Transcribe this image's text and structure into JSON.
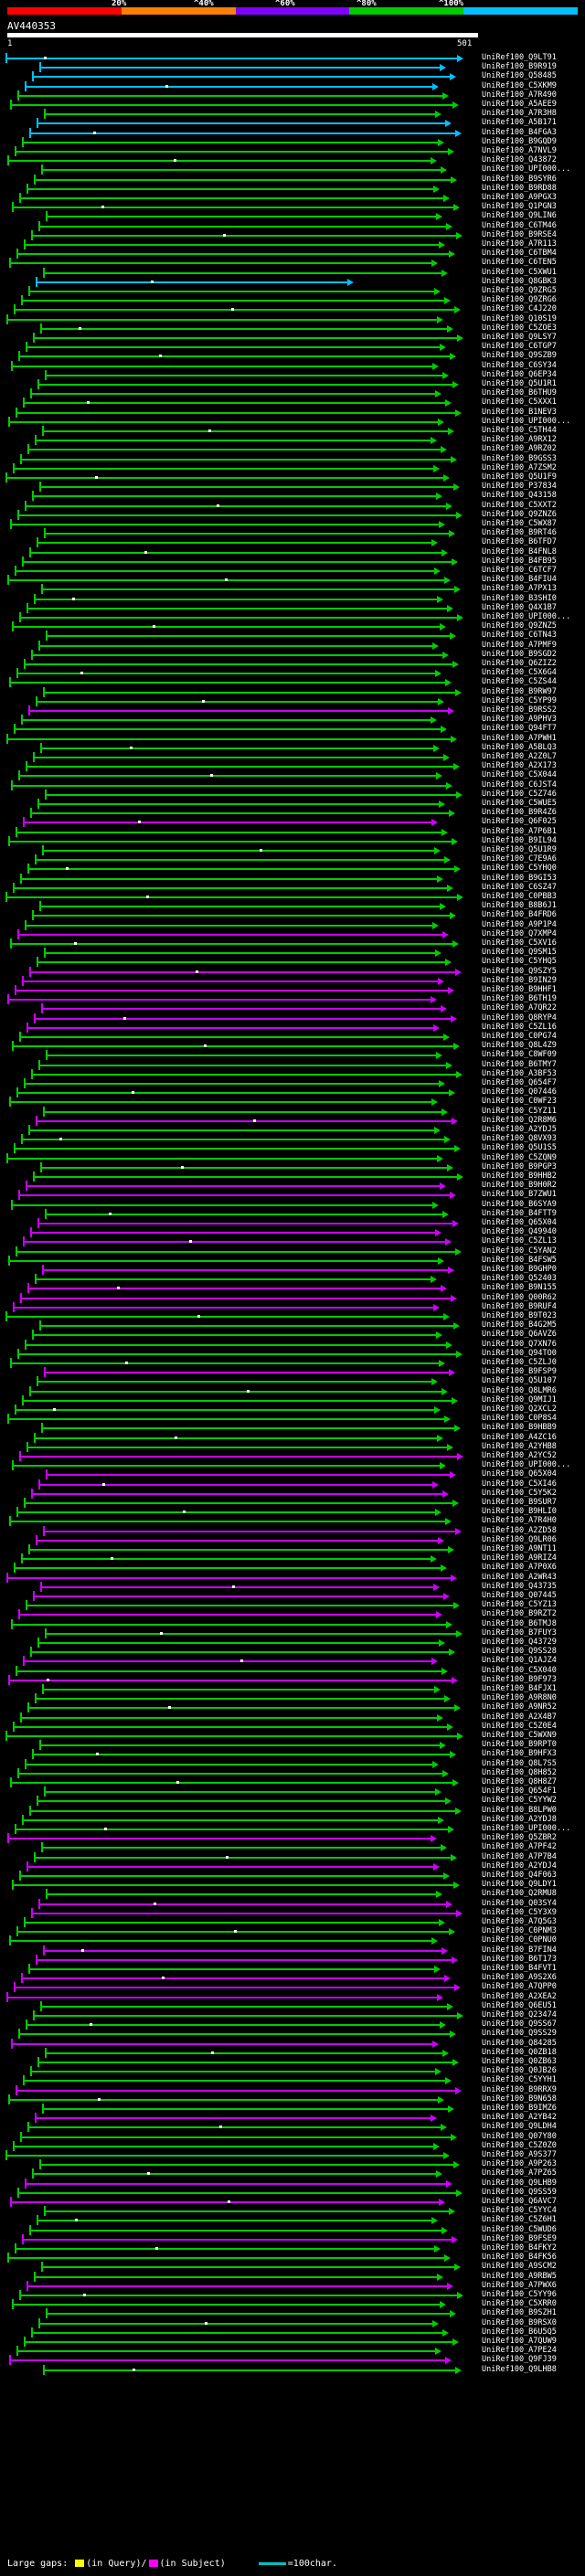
{
  "legend": {
    "colors": [
      "#ff0000",
      "#ff8000",
      "#8000ff",
      "#00cc00",
      "#00c0ff"
    ],
    "labels": [
      "20%",
      "^40%",
      "^60%",
      "^80%",
      "^100%"
    ]
  },
  "query": {
    "id": "AV440353",
    "start": "1",
    "end": "501"
  },
  "hits": [
    {
      "name": "UniRef100_Q9LT91",
      "color": "#00c0ff"
    },
    {
      "name": "UniRef100_B9R919",
      "color": "#00c0ff"
    },
    {
      "name": "UniRef100_Q58485",
      "color": "#00c0ff"
    },
    {
      "name": "UniRef100_C5XKM9",
      "color": "#00c0ff"
    },
    {
      "name": "UniRef100_A7R490",
      "color": "#00cc00"
    },
    {
      "name": "UniRef100_A5AEE9",
      "color": "#00cc00"
    },
    {
      "name": "UniRef100_A7R3H8",
      "color": "#00cc00"
    },
    {
      "name": "UniRef100_A5B171",
      "color": "#00c0ff"
    },
    {
      "name": "UniRef100_B4FGA3",
      "color": "#00c0ff"
    },
    {
      "name": "UniRef100_B9GQD9",
      "color": "#00cc00"
    },
    {
      "name": "UniRef100_A7NVL9",
      "color": "#00cc00"
    },
    {
      "name": "UniRef100_Q43872",
      "color": "#00cc00"
    },
    {
      "name": "UniRef100_UPI000...",
      "color": "#00cc00"
    },
    {
      "name": "UniRef100_B9SYR6",
      "color": "#00cc00"
    },
    {
      "name": "UniRef100_B9RD88",
      "color": "#00cc00"
    },
    {
      "name": "UniRef100_A9PGX3",
      "color": "#00cc00"
    },
    {
      "name": "UniRef100_Q1PGN3",
      "color": "#00cc00"
    },
    {
      "name": "UniRef100_Q9LIN6",
      "color": "#00cc00"
    },
    {
      "name": "UniRef100_C6TM46",
      "color": "#00cc00"
    },
    {
      "name": "UniRef100_B9RSE4",
      "color": "#00cc00"
    },
    {
      "name": "UniRef100_A7R113",
      "color": "#00cc00"
    },
    {
      "name": "UniRef100_C6TBM4",
      "color": "#00cc00"
    },
    {
      "name": "UniRef100_C6TEN5",
      "color": "#00cc00"
    },
    {
      "name": "UniRef100_C5XWU1",
      "color": "#00cc00"
    },
    {
      "name": "UniRef100_Q8GBK3",
      "color": "#00c0ff"
    },
    {
      "name": "UniRef100_Q9ZRG5",
      "color": "#00cc00"
    },
    {
      "name": "UniRef100_Q9ZRG6",
      "color": "#00cc00"
    },
    {
      "name": "UniRef100_C4J220",
      "color": "#00cc00"
    },
    {
      "name": "UniRef100_Q10S19",
      "color": "#00cc00"
    },
    {
      "name": "UniRef100_C5ZOE3",
      "color": "#00cc00"
    },
    {
      "name": "UniRef100_Q9LSY7",
      "color": "#00cc00"
    },
    {
      "name": "UniRef100_C6TGP7",
      "color": "#00cc00"
    },
    {
      "name": "UniRef100_Q9SZB9",
      "color": "#00cc00"
    },
    {
      "name": "UniRef100_C6SY34",
      "color": "#00cc00"
    },
    {
      "name": "UniRef100_Q6EP34",
      "color": "#00cc00"
    },
    {
      "name": "UniRef100_Q5U1R1",
      "color": "#00cc00"
    },
    {
      "name": "UniRef100_B6THU9",
      "color": "#00cc00"
    },
    {
      "name": "UniRef100_C5XXX1",
      "color": "#00cc00"
    },
    {
      "name": "UniRef100_B1NEV3",
      "color": "#00cc00"
    },
    {
      "name": "UniRef100_UPI000...",
      "color": "#00cc00"
    },
    {
      "name": "UniRef100_C5TH44",
      "color": "#00cc00"
    },
    {
      "name": "UniRef100_A9RX12",
      "color": "#00cc00"
    },
    {
      "name": "UniRef100_A9RZ02",
      "color": "#00cc00"
    },
    {
      "name": "UniRef100_B9GSS3",
      "color": "#00cc00"
    },
    {
      "name": "UniRef100_A7ZSM2",
      "color": "#00cc00"
    },
    {
      "name": "UniRef100_Q5U1F9",
      "color": "#00cc00"
    },
    {
      "name": "UniRef100_P37834",
      "color": "#00cc00"
    },
    {
      "name": "UniRef100_Q43158",
      "color": "#00cc00"
    },
    {
      "name": "UniRef100_C5XXT2",
      "color": "#00cc00"
    },
    {
      "name": "UniRef100_Q9ZNZ6",
      "color": "#00cc00"
    },
    {
      "name": "UniRef100_C5WX87",
      "color": "#00cc00"
    },
    {
      "name": "UniRef100_B9RT46",
      "color": "#00cc00"
    },
    {
      "name": "UniRef100_B6TFD7",
      "color": "#00cc00"
    },
    {
      "name": "UniRef100_B4FNL8",
      "color": "#00cc00"
    },
    {
      "name": "UniRef100_B4FB95",
      "color": "#00cc00"
    },
    {
      "name": "UniRef100_C6TCF7",
      "color": "#00cc00"
    },
    {
      "name": "UniRef100_B4FIU4",
      "color": "#00cc00"
    },
    {
      "name": "UniRef100_A7PX13",
      "color": "#00cc00"
    },
    {
      "name": "UniRef100_B3SHI0",
      "color": "#00cc00"
    },
    {
      "name": "UniRef100_Q4X1B7",
      "color": "#00cc00"
    },
    {
      "name": "UniRef100_UPI000...",
      "color": "#00cc00"
    },
    {
      "name": "UniRef100_Q9ZNZ5",
      "color": "#00cc00"
    },
    {
      "name": "UniRef100_C6TN43",
      "color": "#00cc00"
    },
    {
      "name": "UniRef100_A7PMF9",
      "color": "#00cc00"
    },
    {
      "name": "UniRef100_B9SGD2",
      "color": "#00cc00"
    },
    {
      "name": "UniRef100_Q6ZIZ2",
      "color": "#00cc00"
    },
    {
      "name": "UniRef100_C5X6G4",
      "color": "#00cc00"
    },
    {
      "name": "UniRef100_C5ZS44",
      "color": "#00cc00"
    },
    {
      "name": "UniRef100_B9RW97",
      "color": "#00cc00"
    },
    {
      "name": "UniRef100_C5YP99",
      "color": "#00cc00"
    },
    {
      "name": "UniRef100_B9RSS2",
      "color": "#cc00ff"
    },
    {
      "name": "UniRef100_A9PHV3",
      "color": "#00cc00"
    },
    {
      "name": "UniRef100_Q94FT7",
      "color": "#00cc00"
    },
    {
      "name": "UniRef100_A7PWH1",
      "color": "#00cc00"
    },
    {
      "name": "UniRef100_A5BLQ3",
      "color": "#00cc00"
    },
    {
      "name": "UniRef100_A2Z0L7",
      "color": "#00cc00"
    },
    {
      "name": "UniRef100_A2X173",
      "color": "#00cc00"
    },
    {
      "name": "UniRef100_C5X044",
      "color": "#00cc00"
    },
    {
      "name": "UniRef100_C6JST4",
      "color": "#00cc00"
    },
    {
      "name": "UniRef100_C5Z746",
      "color": "#00cc00"
    },
    {
      "name": "UniRef100_C5WUE5",
      "color": "#00cc00"
    },
    {
      "name": "UniRef100_B9R4Z6",
      "color": "#00cc00"
    },
    {
      "name": "UniRef100_Q6F025",
      "color": "#cc00ff"
    },
    {
      "name": "UniRef100_A7P6B1",
      "color": "#00cc00"
    },
    {
      "name": "UniRef100_B9IL94",
      "color": "#00cc00"
    },
    {
      "name": "UniRef100_Q5U1R9",
      "color": "#00cc00"
    },
    {
      "name": "UniRef100_C7E9A6",
      "color": "#00cc00"
    },
    {
      "name": "UniRef100_C5YHQ0",
      "color": "#00cc00"
    },
    {
      "name": "UniRef100_B9GI53",
      "color": "#00cc00"
    },
    {
      "name": "UniRef100_C6SZ47",
      "color": "#00cc00"
    },
    {
      "name": "UniRef100_C0PBB3",
      "color": "#00cc00"
    },
    {
      "name": "UniRef100_B8B6J1",
      "color": "#00cc00"
    },
    {
      "name": "UniRef100_B4FRD6",
      "color": "#00cc00"
    },
    {
      "name": "UniRef100_A9P1P4",
      "color": "#00cc00"
    },
    {
      "name": "UniRef100_Q7XMP4",
      "color": "#cc00ff"
    },
    {
      "name": "UniRef100_C5XV16",
      "color": "#00cc00"
    },
    {
      "name": "UniRef100_Q9SM15",
      "color": "#00cc00"
    },
    {
      "name": "UniRef100_C5YHQ5",
      "color": "#00cc00"
    },
    {
      "name": "UniRef100_Q9SZY5",
      "color": "#cc00ff"
    },
    {
      "name": "UniRef100_B9IN29",
      "color": "#cc00ff"
    },
    {
      "name": "UniRef100_B9HHF1",
      "color": "#cc00ff"
    },
    {
      "name": "UniRef100_B6TH19",
      "color": "#cc00ff"
    },
    {
      "name": "UniRef100_A7QR22",
      "color": "#cc00ff"
    },
    {
      "name": "UniRef100_Q8RYP4",
      "color": "#cc00ff"
    },
    {
      "name": "UniRef100_C5ZL16",
      "color": "#cc00ff"
    },
    {
      "name": "UniRef100_C0PG74",
      "color": "#00cc00"
    },
    {
      "name": "UniRef100_Q8L4Z9",
      "color": "#00cc00"
    },
    {
      "name": "UniRef100_C8WF09",
      "color": "#00cc00"
    },
    {
      "name": "UniRef100_B6TMY7",
      "color": "#00cc00"
    },
    {
      "name": "UniRef100_A3BF53",
      "color": "#00cc00"
    },
    {
      "name": "UniRef100_Q654F7",
      "color": "#00cc00"
    },
    {
      "name": "UniRef100_Q07446",
      "color": "#00cc00"
    },
    {
      "name": "UniRef100_C0WF23",
      "color": "#00cc00"
    },
    {
      "name": "UniRef100_C5YZ11",
      "color": "#00cc00"
    },
    {
      "name": "UniRef100_Q2R8M6",
      "color": "#cc00ff"
    },
    {
      "name": "UniRef100_A2YDJ5",
      "color": "#00cc00"
    },
    {
      "name": "UniRef100_Q8VX93",
      "color": "#00cc00"
    },
    {
      "name": "UniRef100_Q5U1S5",
      "color": "#00cc00"
    },
    {
      "name": "UniRef100_C5ZQN9",
      "color": "#00cc00"
    },
    {
      "name": "UniRef100_B9PGP3",
      "color": "#00cc00"
    },
    {
      "name": "UniRef100_B9HHB2",
      "color": "#00cc00"
    },
    {
      "name": "UniRef100_B9H0R2",
      "color": "#cc00ff"
    },
    {
      "name": "UniRef100_B7ZWU1",
      "color": "#cc00ff"
    },
    {
      "name": "UniRef100_B6SYA9",
      "color": "#00cc00"
    },
    {
      "name": "UniRef100_B4FTT9",
      "color": "#00cc00"
    },
    {
      "name": "UniRef100_Q65X04",
      "color": "#cc00ff"
    },
    {
      "name": "UniRef100_Q49940",
      "color": "#cc00ff"
    },
    {
      "name": "UniRef100_C5ZL13",
      "color": "#cc00ff"
    },
    {
      "name": "UniRef100_C5YAN2",
      "color": "#00cc00"
    },
    {
      "name": "UniRef100_B4FSW5",
      "color": "#00cc00"
    },
    {
      "name": "UniRef100_B9GHP0",
      "color": "#cc00ff"
    },
    {
      "name": "UniRef100_Q52403",
      "color": "#00cc00"
    },
    {
      "name": "UniRef100_B9N155",
      "color": "#cc00ff"
    },
    {
      "name": "UniRef100_Q00R62",
      "color": "#cc00ff"
    },
    {
      "name": "UniRef100_B9RUF4",
      "color": "#cc00ff"
    },
    {
      "name": "UniRef100_B9T023",
      "color": "#00cc00"
    },
    {
      "name": "UniRef100_B4G2M5",
      "color": "#00cc00"
    },
    {
      "name": "UniRef100_Q6AVZ6",
      "color": "#00cc00"
    },
    {
      "name": "UniRef100_Q7XN76",
      "color": "#00cc00"
    },
    {
      "name": "UniRef100_Q94TO0",
      "color": "#00cc00"
    },
    {
      "name": "UniRef100_C5ZLJ0",
      "color": "#00cc00"
    },
    {
      "name": "UniRef100_B9FSP9",
      "color": "#cc00ff"
    },
    {
      "name": "UniRef100_Q5U107",
      "color": "#00cc00"
    },
    {
      "name": "UniRef100_Q8LMR6",
      "color": "#00cc00"
    },
    {
      "name": "UniRef100_Q9MIJ1",
      "color": "#00cc00"
    },
    {
      "name": "UniRef100_Q2XCL2",
      "color": "#00cc00"
    },
    {
      "name": "UniRef100_C0P8S4",
      "color": "#00cc00"
    },
    {
      "name": "UniRef100_B9HBB9",
      "color": "#00cc00"
    },
    {
      "name": "UniRef100_A4ZC16",
      "color": "#00cc00"
    },
    {
      "name": "UniRef100_A2YHB8",
      "color": "#00cc00"
    },
    {
      "name": "UniRef100_A2YC52",
      "color": "#cc00ff"
    },
    {
      "name": "UniRef100_UPI000...",
      "color": "#00cc00"
    },
    {
      "name": "UniRef100_Q65X04",
      "color": "#cc00ff"
    },
    {
      "name": "UniRef100_C5XI46",
      "color": "#cc00ff"
    },
    {
      "name": "UniRef100_C5Y5K2",
      "color": "#cc00ff"
    },
    {
      "name": "UniRef100_B9SUR7",
      "color": "#00cc00"
    },
    {
      "name": "UniRef100_B9HLI0",
      "color": "#00cc00"
    },
    {
      "name": "UniRef100_A7R4H0",
      "color": "#00cc00"
    },
    {
      "name": "UniRef100_A2ZD58",
      "color": "#cc00ff"
    },
    {
      "name": "UniRef100_Q9LR06",
      "color": "#cc00ff"
    },
    {
      "name": "UniRef100_A9NT11",
      "color": "#00cc00"
    },
    {
      "name": "UniRef100_A9RIZ4",
      "color": "#00cc00"
    },
    {
      "name": "UniRef100_A7P0X6",
      "color": "#00cc00"
    },
    {
      "name": "UniRef100_A2WR43",
      "color": "#cc00ff"
    },
    {
      "name": "UniRef100_Q43735",
      "color": "#cc00ff"
    },
    {
      "name": "UniRef100_Q07445",
      "color": "#cc00ff"
    },
    {
      "name": "UniRef100_C5YZ13",
      "color": "#00cc00"
    },
    {
      "name": "UniRef100_B9RZT2",
      "color": "#cc00ff"
    },
    {
      "name": "UniRef100_B6TMJ8",
      "color": "#00cc00"
    },
    {
      "name": "UniRef100_B7FUY3",
      "color": "#00cc00"
    },
    {
      "name": "UniRef100_Q43729",
      "color": "#00cc00"
    },
    {
      "name": "UniRef100_Q9SS28",
      "color": "#00cc00"
    },
    {
      "name": "UniRef100_Q1AJZ4",
      "color": "#cc00ff"
    },
    {
      "name": "UniRef100_C5X040",
      "color": "#00cc00"
    },
    {
      "name": "UniRef100_B9F973",
      "color": "#cc00ff"
    },
    {
      "name": "UniRef100_B4FJX1",
      "color": "#00cc00"
    },
    {
      "name": "UniRef100_A9R8N0",
      "color": "#00cc00"
    },
    {
      "name": "UniRef100_A9NR52",
      "color": "#00cc00"
    },
    {
      "name": "UniRef100_A2X4B7",
      "color": "#00cc00"
    },
    {
      "name": "UniRef100_C5Z0E4",
      "color": "#00cc00"
    },
    {
      "name": "UniRef100_C5WXN9",
      "color": "#00cc00"
    },
    {
      "name": "UniRef100_B9RPT0",
      "color": "#00cc00"
    },
    {
      "name": "UniRef100_B9HFX3",
      "color": "#00cc00"
    },
    {
      "name": "UniRef100_Q8L7S5",
      "color": "#00cc00"
    },
    {
      "name": "UniRef100_Q8H852",
      "color": "#00cc00"
    },
    {
      "name": "UniRef100_Q8H8Z7",
      "color": "#00cc00"
    },
    {
      "name": "UniRef100_Q654F1",
      "color": "#00cc00"
    },
    {
      "name": "UniRef100_C5YYW2",
      "color": "#00cc00"
    },
    {
      "name": "UniRef100_B8LPW0",
      "color": "#00cc00"
    },
    {
      "name": "UniRef100_A2YDJ8",
      "color": "#00cc00"
    },
    {
      "name": "UniRef100_UPI000...",
      "color": "#00cc00"
    },
    {
      "name": "UniRef100_Q5ZBR2",
      "color": "#cc00ff"
    },
    {
      "name": "UniRef100_A7PF42",
      "color": "#00cc00"
    },
    {
      "name": "UniRef100_A7P7B4",
      "color": "#00cc00"
    },
    {
      "name": "UniRef100_A2YDJ4",
      "color": "#cc00ff"
    },
    {
      "name": "UniRef100_Q4F063",
      "color": "#00cc00"
    },
    {
      "name": "UniRef100_Q9LDY1",
      "color": "#00cc00"
    },
    {
      "name": "UniRef100_Q2RMU8",
      "color": "#00cc00"
    },
    {
      "name": "UniRef100_Q03SY4",
      "color": "#cc00ff"
    },
    {
      "name": "UniRef100_C5Y3X9",
      "color": "#cc00ff"
    },
    {
      "name": "UniRef100_A7Q5G3",
      "color": "#00cc00"
    },
    {
      "name": "UniRef100_C0PNM3",
      "color": "#00cc00"
    },
    {
      "name": "UniRef100_C0PNU0",
      "color": "#00cc00"
    },
    {
      "name": "UniRef100_B7FIN4",
      "color": "#cc00ff"
    },
    {
      "name": "UniRef100_B6T173",
      "color": "#cc00ff"
    },
    {
      "name": "UniRef100_B4FVT1",
      "color": "#00cc00"
    },
    {
      "name": "UniRef100_A9S2X6",
      "color": "#cc00ff"
    },
    {
      "name": "UniRef100_A7QPP0",
      "color": "#cc00ff"
    },
    {
      "name": "UniRef100_A2XEA2",
      "color": "#cc00ff"
    },
    {
      "name": "UniRef100_Q6EU51",
      "color": "#00cc00"
    },
    {
      "name": "UniRef100_Q23474",
      "color": "#00cc00"
    },
    {
      "name": "UniRef100_Q9SS67",
      "color": "#00cc00"
    },
    {
      "name": "UniRef100_Q9SS29",
      "color": "#00cc00"
    },
    {
      "name": "UniRef100_Q84285",
      "color": "#cc00ff"
    },
    {
      "name": "UniRef100_Q0ZB18",
      "color": "#00cc00"
    },
    {
      "name": "UniRef100_Q0ZB63",
      "color": "#00cc00"
    },
    {
      "name": "UniRef100_Q0JB26",
      "color": "#00cc00"
    },
    {
      "name": "UniRef100_C5YYH1",
      "color": "#00cc00"
    },
    {
      "name": "UniRef100_B9RRX9",
      "color": "#cc00ff"
    },
    {
      "name": "UniRef100_B9N658",
      "color": "#00cc00"
    },
    {
      "name": "UniRef100_B9IMZ6",
      "color": "#00cc00"
    },
    {
      "name": "UniRef100_A2YB42",
      "color": "#cc00ff"
    },
    {
      "name": "UniRef100_Q9LDH4",
      "color": "#00cc00"
    },
    {
      "name": "UniRef100_Q07Y80",
      "color": "#00cc00"
    },
    {
      "name": "UniRef100_C5Z0Z0",
      "color": "#00cc00"
    },
    {
      "name": "UniRef100_A9S377",
      "color": "#00cc00"
    },
    {
      "name": "UniRef100_A9P263",
      "color": "#00cc00"
    },
    {
      "name": "UniRef100_A7PZ65",
      "color": "#00cc00"
    },
    {
      "name": "UniRef100_Q9LHB9",
      "color": "#cc00ff"
    },
    {
      "name": "UniRef100_Q9SS59",
      "color": "#00cc00"
    },
    {
      "name": "UniRef100_Q6AVC7",
      "color": "#cc00ff"
    },
    {
      "name": "UniRef100_C5YYC4",
      "color": "#00cc00"
    },
    {
      "name": "UniRef100_C5Z6H1",
      "color": "#00cc00"
    },
    {
      "name": "UniRef100_C5WUD6",
      "color": "#00cc00"
    },
    {
      "name": "UniRef100_B9FSE9",
      "color": "#cc00ff"
    },
    {
      "name": "UniRef100_B4FKY2",
      "color": "#00cc00"
    },
    {
      "name": "UniRef100_B4FK56",
      "color": "#00cc00"
    },
    {
      "name": "UniRef100_A9SCM2",
      "color": "#00cc00"
    },
    {
      "name": "UniRef100_A9RBW5",
      "color": "#00cc00"
    },
    {
      "name": "UniRef100_A7PWX6",
      "color": "#cc00ff"
    },
    {
      "name": "UniRef100_C5YY96",
      "color": "#00cc00"
    },
    {
      "name": "UniRef100_C5XRR0",
      "color": "#00cc00"
    },
    {
      "name": "UniRef100_B9SZH1",
      "color": "#00cc00"
    },
    {
      "name": "UniRef100_B9RSX0",
      "color": "#00cc00"
    },
    {
      "name": "UniRef100_B6U5Q5",
      "color": "#00cc00"
    },
    {
      "name": "UniRef100_A7QUW9",
      "color": "#00cc00"
    },
    {
      "name": "UniRef100_A7PE24",
      "color": "#00cc00"
    },
    {
      "name": "UniRef100_Q9FJ39",
      "color": "#cc00ff"
    },
    {
      "name": "UniRef100_Q9LHB8",
      "color": "#00cc00"
    }
  ],
  "footer": {
    "label_large_gaps": "Large gaps:",
    "label_in_query": "(in Query)/",
    "label_in_subject": "(in Subject)",
    "label_scale": "=100char.",
    "query_gap_color": "#ffff00",
    "subject_gap_color": "#ff00ff",
    "scale_color": "#00c0c0"
  }
}
